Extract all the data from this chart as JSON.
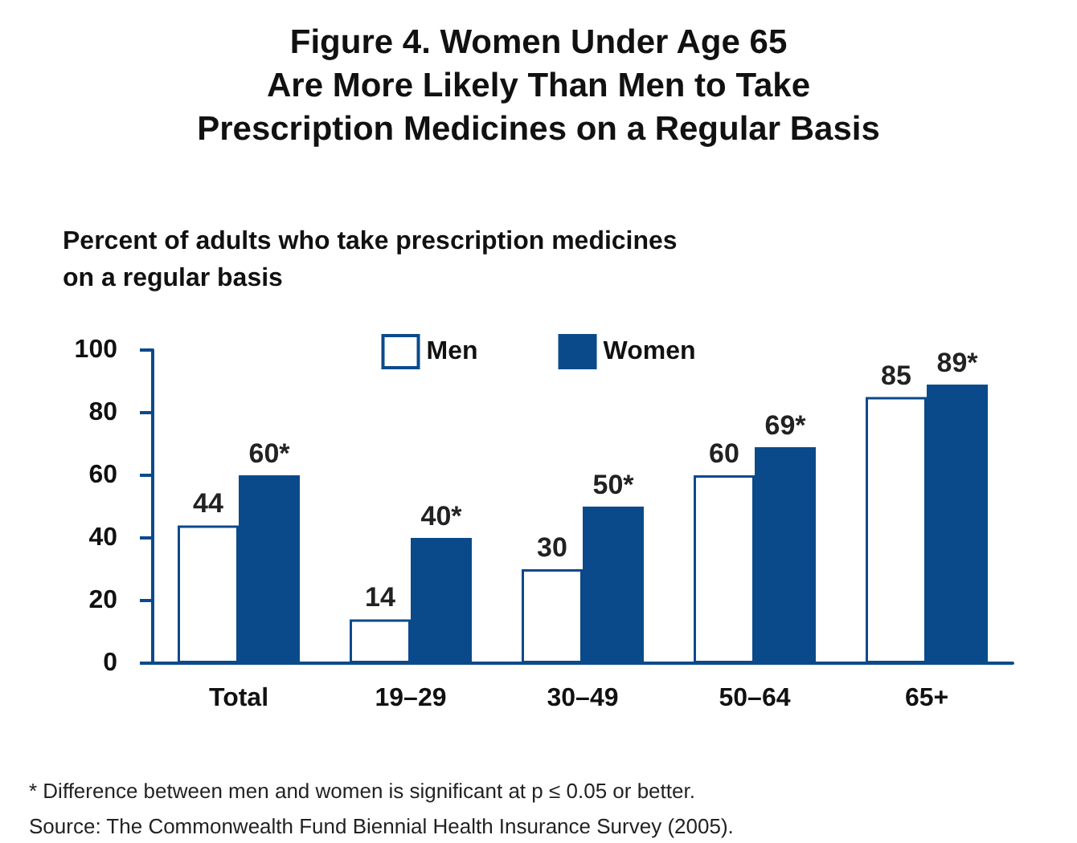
{
  "chart_data": {
    "type": "bar",
    "title": "Figure 4. Women Under Age 65\nAre More Likely Than Men to Take\nPrescription Medicines on a Regular Basis",
    "subtitle": "Percent of adults who take prescription medicines\non a regular basis",
    "categories": [
      "Total",
      "19–29",
      "30–49",
      "50–64",
      "65+"
    ],
    "series": [
      {
        "name": "Men",
        "color": "#ffffff",
        "values": [
          44,
          14,
          30,
          60,
          85
        ],
        "value_labels": [
          "44",
          "14",
          "30",
          "60",
          "85"
        ]
      },
      {
        "name": "Women",
        "color": "#0b4a8a",
        "values": [
          60,
          40,
          50,
          69,
          89
        ],
        "value_labels": [
          "60*",
          "40*",
          "50*",
          "69*",
          "89*"
        ]
      }
    ],
    "ylim": [
      0,
      100
    ],
    "yticks": [
      0,
      20,
      40,
      60,
      80,
      100
    ],
    "grid": false,
    "legend": "top",
    "annotations": [
      "* Difference between men and women is significant at p ≤ 0.05 or better.",
      "Source: The Commonwealth Fund Biennial Health Insurance Survey (2005)."
    ]
  }
}
